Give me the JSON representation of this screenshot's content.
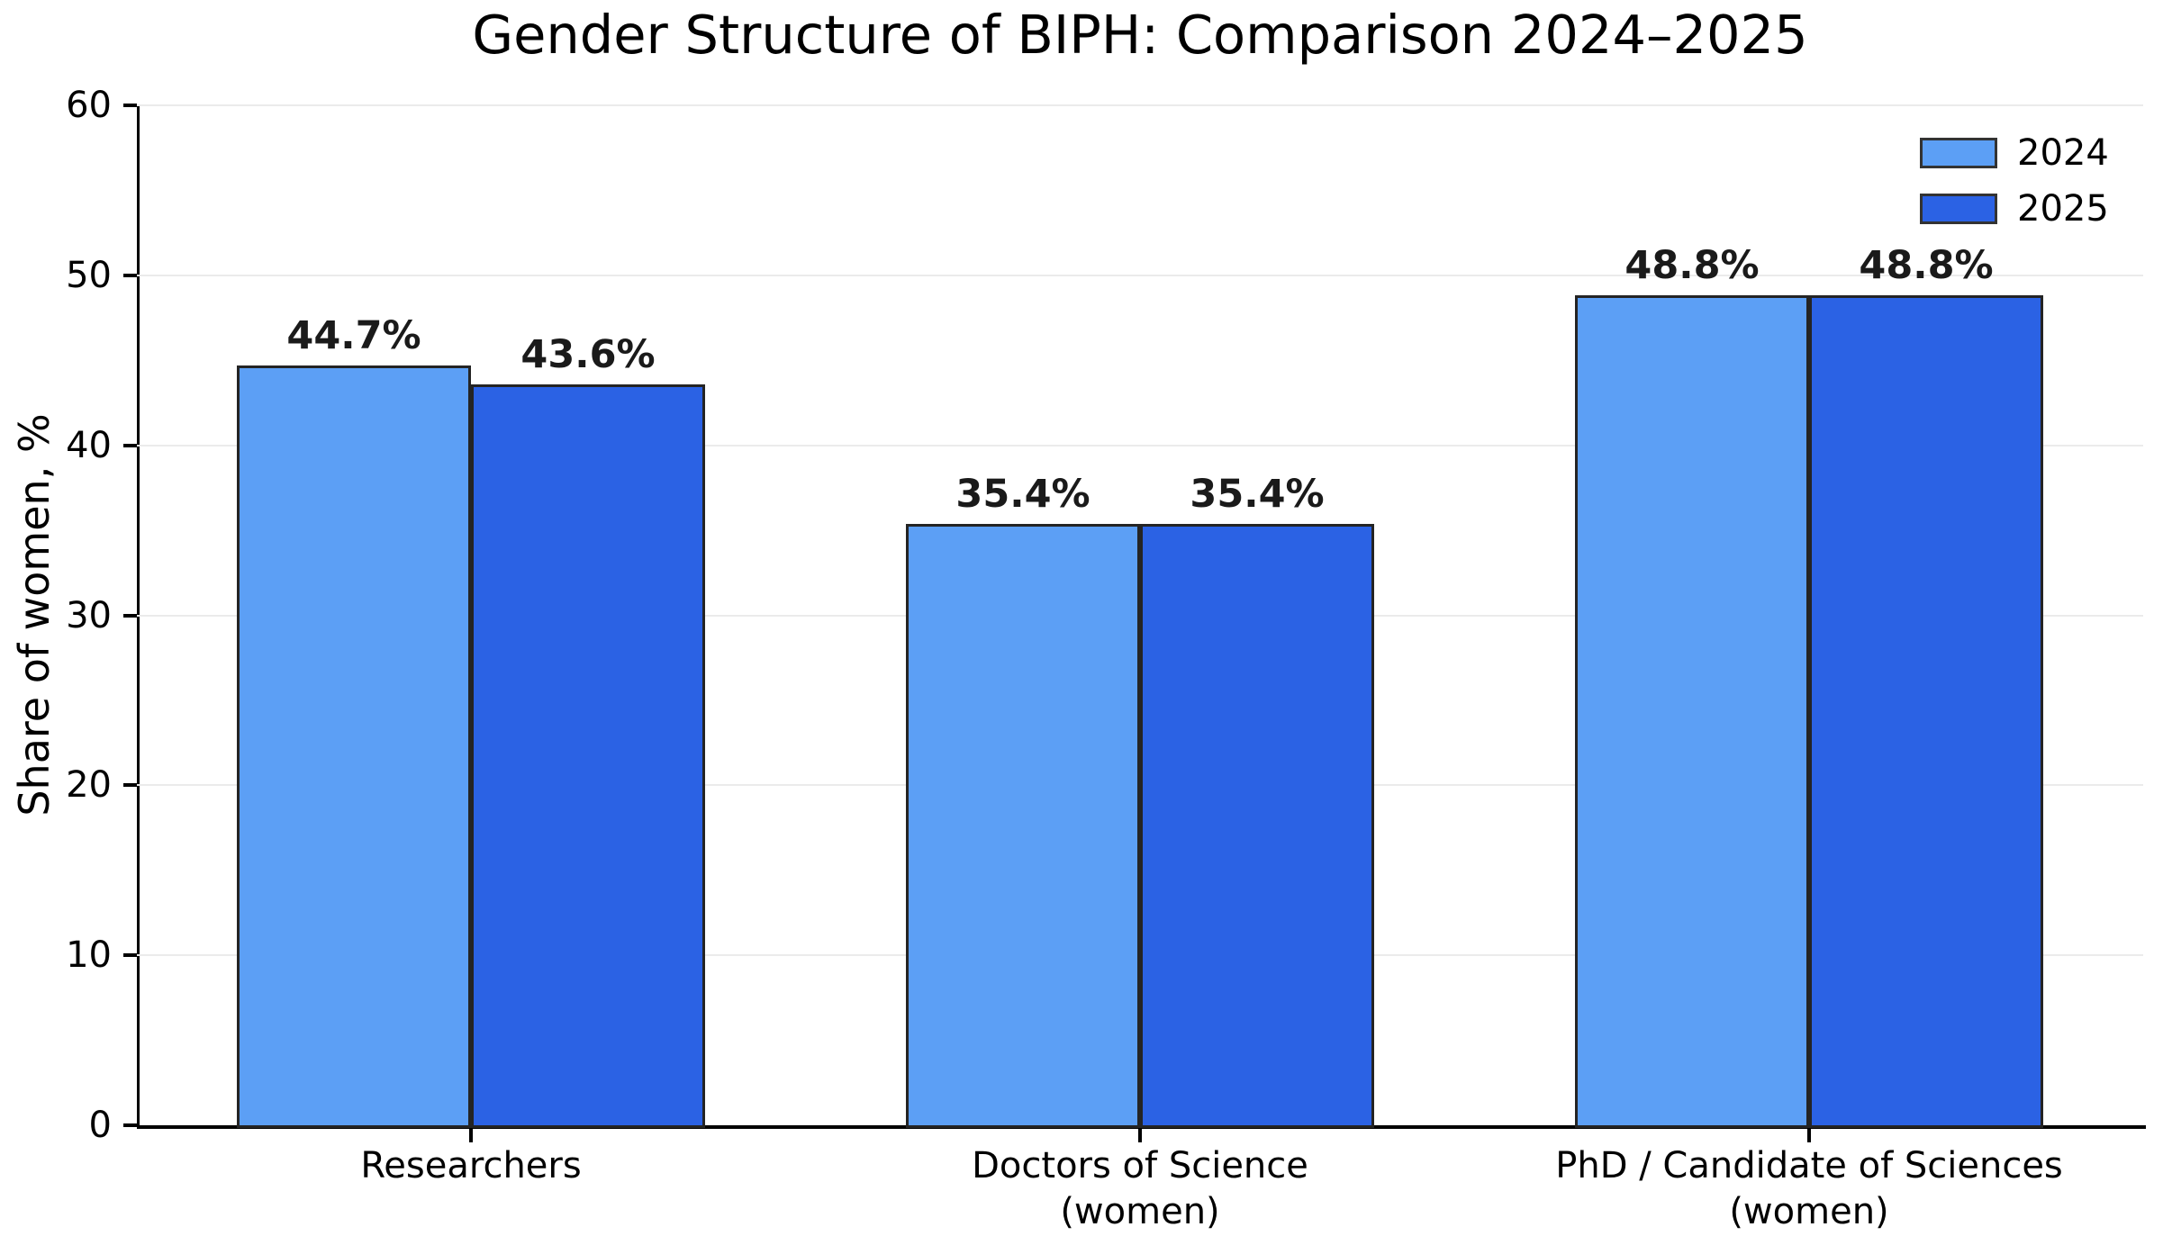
{
  "chart_data": {
    "type": "bar",
    "title": "Gender Structure of BIPH: Comparison 2024–2025",
    "ylabel": "Share of women, %",
    "xlabel": "",
    "ylim": [
      0,
      60
    ],
    "yticks": [
      0,
      10,
      20,
      30,
      40,
      50,
      60
    ],
    "grid": "horizontal-light-gray",
    "legend_position": "upper-right",
    "categories": [
      {
        "lines": [
          "Researchers"
        ]
      },
      {
        "lines": [
          "Doctors of Science",
          "(women)"
        ]
      },
      {
        "lines": [
          "PhD / Candidate of Sciences",
          "(women)"
        ]
      }
    ],
    "series": [
      {
        "name": "2024",
        "color": "#5C9FF5",
        "values": [
          44.7,
          35.4,
          48.8
        ],
        "labels": [
          "44.7%",
          "35.4%",
          "48.8%"
        ]
      },
      {
        "name": "2025",
        "color": "#2B62E4",
        "values": [
          43.6,
          35.4,
          48.8
        ],
        "labels": [
          "43.6%",
          "35.4%",
          "48.8%"
        ]
      }
    ]
  },
  "colors": {
    "background": "#ffffff",
    "bar_edge": "#242424",
    "legend_swatch_edge": "#333333",
    "spine": "#000000",
    "grid": "#ebebeb",
    "text": "#000000"
  }
}
